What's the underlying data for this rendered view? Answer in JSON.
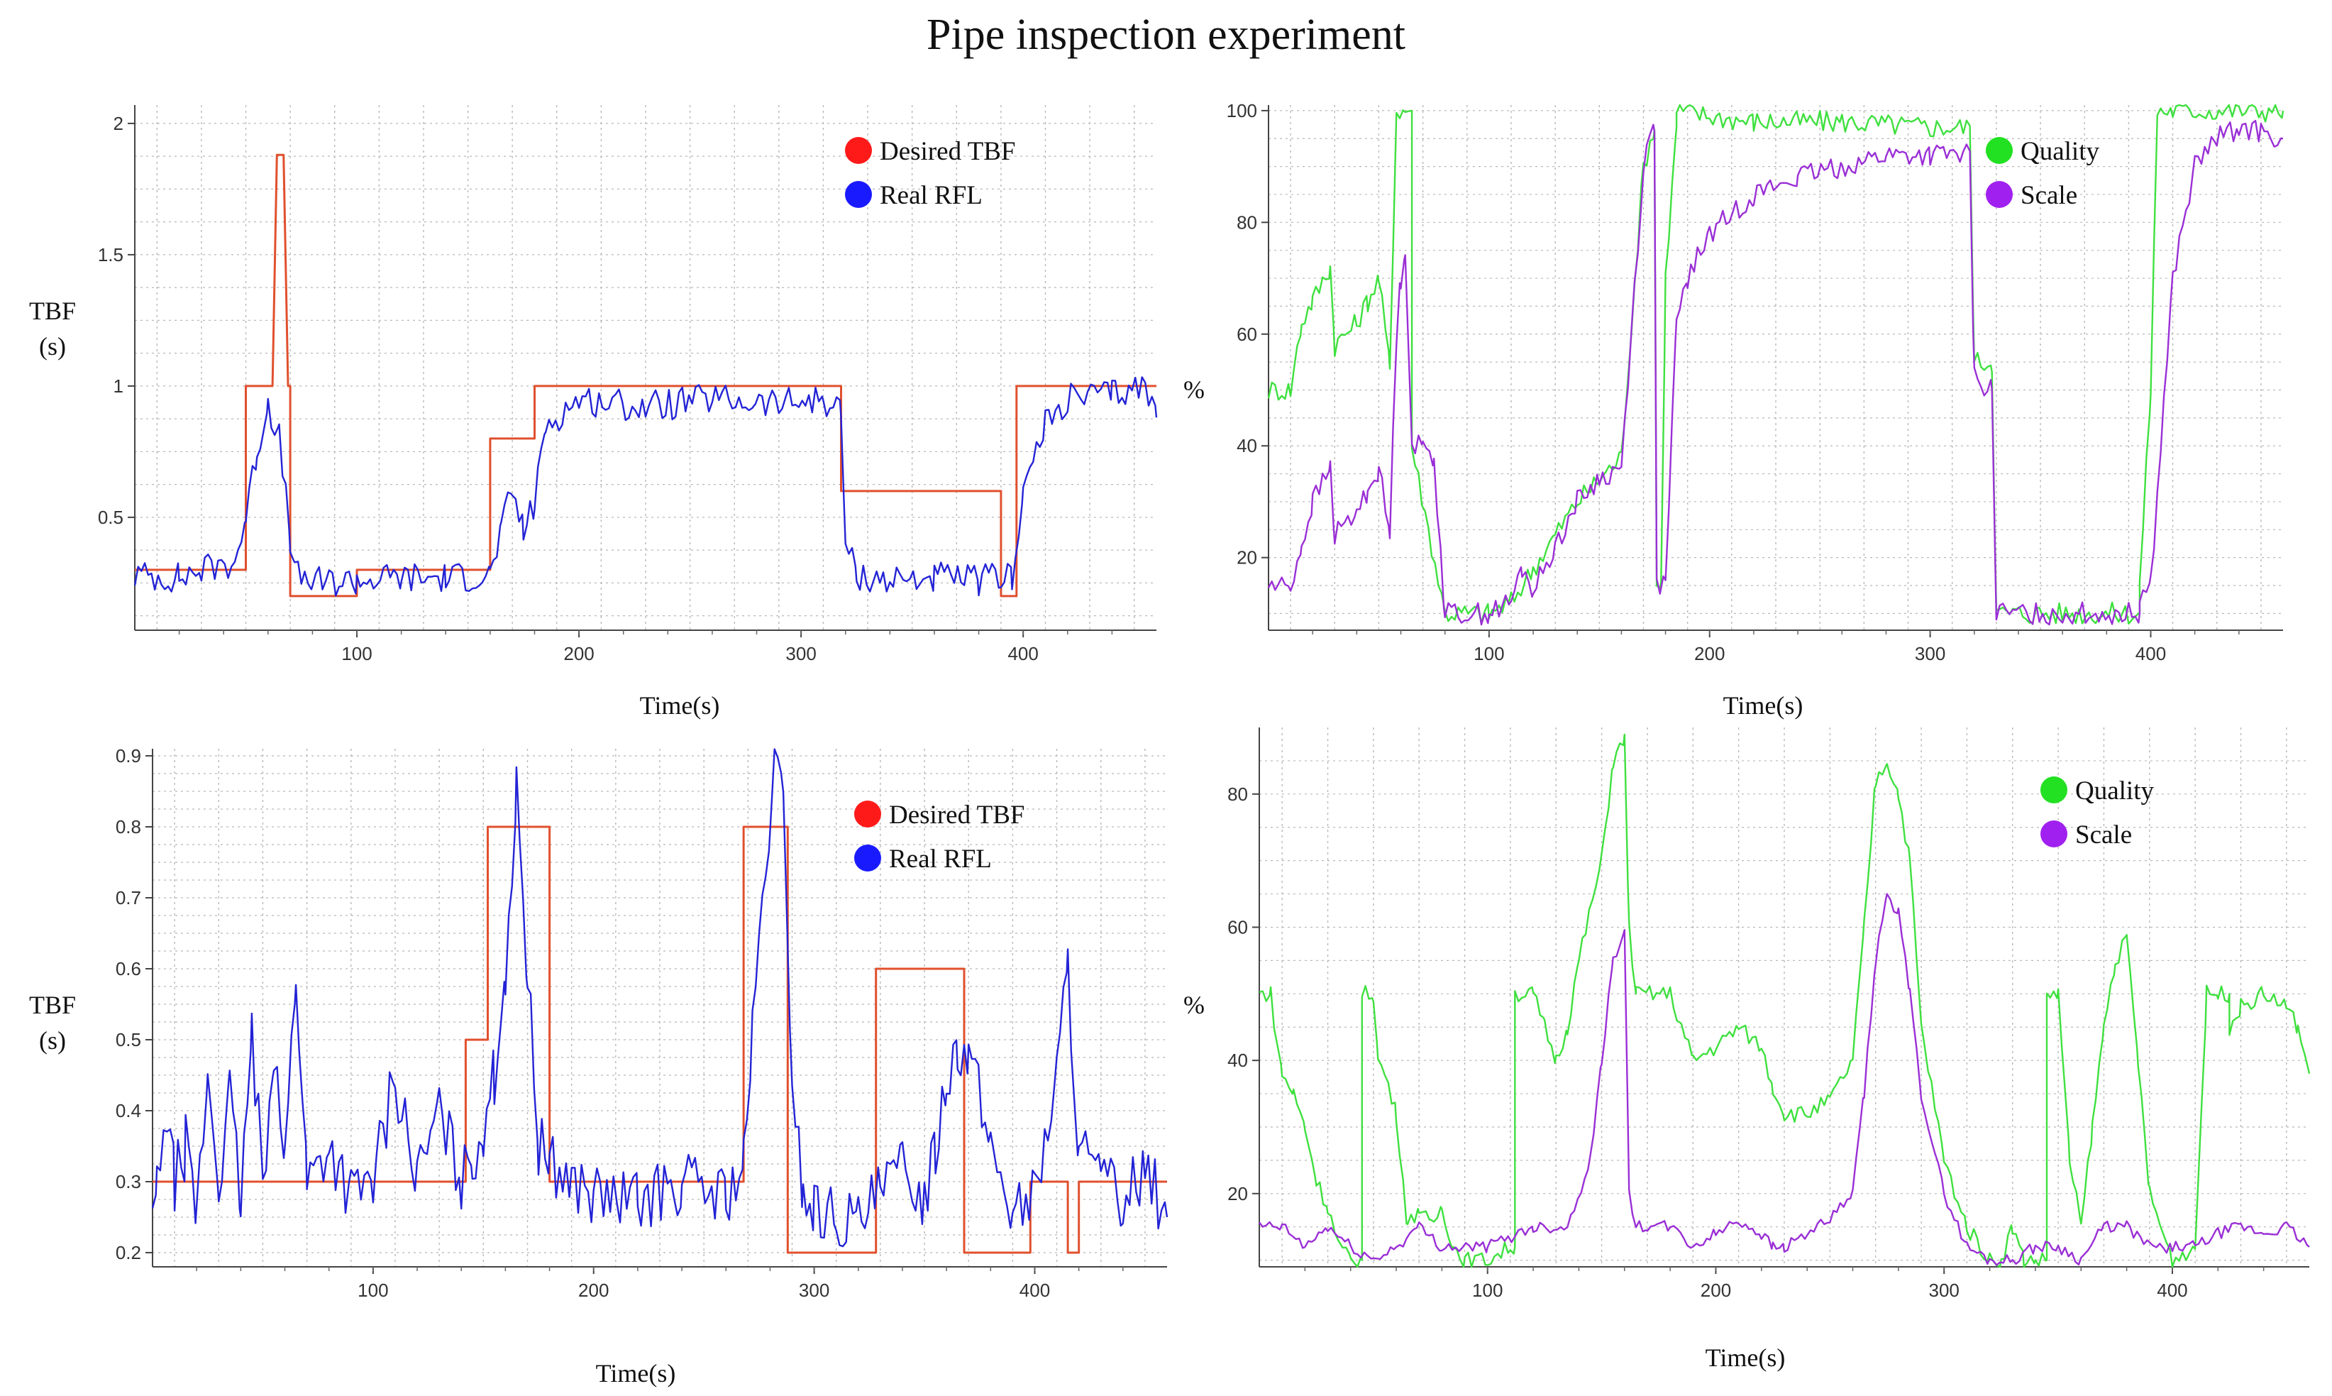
{
  "title": "Pipe inspection experiment",
  "colors": {
    "desired": "#e0502e",
    "real": "#2323d6",
    "quality": "#3fe03f",
    "scale": "#9a2fd6",
    "grid": "#b8b8b8"
  },
  "chart_data": [
    {
      "type": "line",
      "title": "",
      "xlabel": "Time(s)",
      "ylabel": [
        "TBF",
        "(s)"
      ],
      "xlim": [
        0,
        460
      ],
      "ylim": [
        0.07,
        2.07
      ],
      "xticks": [
        100,
        200,
        300,
        400
      ],
      "yticks": [
        0.5,
        1,
        1.5,
        2
      ],
      "ytick_labels": [
        "0.5",
        "1",
        "1.5",
        "2"
      ],
      "legend": [
        {
          "label": "Desired TBF",
          "color": "#ff1a1a"
        },
        {
          "label": "Real RFL",
          "color": "#1a1aff"
        }
      ],
      "legend_position": "top-right",
      "series": [
        {
          "name": "Desired TBF",
          "color": "#e0502e",
          "x": [
            0,
            50,
            50,
            62,
            64,
            67,
            69,
            70,
            70,
            100,
            100,
            160,
            160,
            180,
            180,
            318,
            318,
            390,
            390,
            397,
            397,
            460
          ],
          "values": [
            0.3,
            0.3,
            1.0,
            1.0,
            1.88,
            1.88,
            1.0,
            1.0,
            0.2,
            0.2,
            0.3,
            0.3,
            0.8,
            0.8,
            1.0,
            1.0,
            0.6,
            0.6,
            0.2,
            0.2,
            1.0,
            1.0
          ]
        },
        {
          "name": "Real RFL",
          "color": "#2323d6",
          "x": [
            0,
            20,
            30,
            45,
            50,
            55,
            60,
            65,
            70,
            72,
            80,
            100,
            120,
            140,
            160,
            165,
            170,
            175,
            180,
            185,
            200,
            230,
            260,
            290,
            310,
            318,
            320,
            325,
            340,
            360,
            380,
            390,
            395,
            400,
            410,
            420,
            440,
            455,
            460
          ],
          "values": [
            0.28,
            0.27,
            0.3,
            0.33,
            0.5,
            0.75,
            0.94,
            0.8,
            0.42,
            0.28,
            0.25,
            0.26,
            0.27,
            0.27,
            0.28,
            0.45,
            0.6,
            0.45,
            0.55,
            0.85,
            0.95,
            0.92,
            0.95,
            0.93,
            0.95,
            0.9,
            0.4,
            0.28,
            0.26,
            0.27,
            0.26,
            0.27,
            0.28,
            0.6,
            0.85,
            0.95,
            0.97,
            1.0,
            0.88
          ]
        }
      ]
    },
    {
      "type": "line",
      "title": "",
      "xlabel": "Time(s)",
      "ylabel": [
        "%"
      ],
      "xlim": [
        0,
        460
      ],
      "ylim": [
        7,
        101
      ],
      "xticks": [
        100,
        200,
        300,
        400
      ],
      "yticks": [
        20,
        40,
        60,
        80,
        100
      ],
      "ytick_labels": [
        "20",
        "40",
        "60",
        "80",
        "100"
      ],
      "legend": [
        {
          "label": "Quality",
          "color": "#22e022"
        },
        {
          "label": "Scale",
          "color": "#a020f0"
        }
      ],
      "legend_position": "top-right",
      "series": [
        {
          "name": "Quality",
          "color": "#3fe03f",
          "x": [
            0,
            10,
            15,
            20,
            28,
            30,
            40,
            45,
            50,
            55,
            58,
            62,
            65,
            65,
            80,
            100,
            110,
            120,
            130,
            140,
            150,
            160,
            170,
            175,
            176,
            178,
            180,
            185,
            185,
            200,
            220,
            260,
            300,
            318,
            320,
            328,
            330,
            395,
            395,
            400,
            403,
            410,
            460
          ],
          "values": [
            50,
            50,
            62,
            66,
            72,
            58,
            62,
            66,
            70,
            54,
            100,
            100,
            100,
            40,
            10,
            10,
            12,
            18,
            24,
            30,
            34,
            38,
            90,
            97,
            15,
            15,
            70,
            97,
            100,
            99,
            98,
            98,
            97,
            97,
            55,
            55,
            10,
            10,
            15,
            50,
            100,
            100,
            100
          ]
        },
        {
          "name": "Scale",
          "color": "#9a2fd6",
          "x": [
            0,
            10,
            15,
            20,
            28,
            30,
            40,
            45,
            50,
            55,
            58,
            60,
            62,
            65,
            70,
            75,
            80,
            100,
            110,
            115,
            120,
            130,
            140,
            150,
            160,
            170,
            175,
            176,
            180,
            185,
            190,
            200,
            220,
            240,
            260,
            280,
            300,
            318,
            320,
            328,
            330,
            395,
            395,
            400,
            410,
            420,
            430,
            440,
            450,
            460
          ],
          "values": [
            15,
            15,
            22,
            30,
            36,
            24,
            28,
            32,
            36,
            24,
            60,
            70,
            76,
            40,
            40,
            38,
            10,
            10,
            12,
            18,
            14,
            22,
            30,
            34,
            36,
            90,
            98,
            15,
            15,
            62,
            70,
            78,
            85,
            88,
            90,
            92,
            92,
            92,
            52,
            50,
            10,
            10,
            14,
            15,
            70,
            90,
            95,
            97,
            96,
            95
          ]
        }
      ]
    },
    {
      "type": "line",
      "title": "",
      "xlabel": "Time(s)",
      "ylabel": [
        "TBF",
        "(s)"
      ],
      "xlim": [
        0,
        460
      ],
      "ylim": [
        0.18,
        0.91
      ],
      "xticks": [
        100,
        200,
        300,
        400
      ],
      "yticks": [
        0.2,
        0.3,
        0.4,
        0.5,
        0.6,
        0.7,
        0.8,
        0.9
      ],
      "ytick_labels": [
        "0.2",
        "0.3",
        "0.4",
        "0.5",
        "0.6",
        "0.7",
        "0.8",
        "0.9"
      ],
      "legend": [
        {
          "label": "Desired TBF",
          "color": "#ff1a1a"
        },
        {
          "label": "Real RFL",
          "color": "#1a1aff"
        }
      ],
      "legend_position": "top-right",
      "series": [
        {
          "name": "Desired TBF",
          "color": "#e0502e",
          "x": [
            0,
            142,
            142,
            152,
            152,
            180,
            180,
            268,
            268,
            288,
            288,
            328,
            328,
            368,
            368,
            398,
            398,
            415,
            415,
            420,
            420,
            460
          ],
          "values": [
            0.3,
            0.3,
            0.5,
            0.5,
            0.8,
            0.8,
            0.3,
            0.3,
            0.8,
            0.8,
            0.2,
            0.2,
            0.6,
            0.6,
            0.2,
            0.2,
            0.3,
            0.3,
            0.2,
            0.2,
            0.3,
            0.3
          ]
        },
        {
          "name": "Real RFL",
          "color": "#2323d6",
          "x": [
            0,
            2,
            5,
            10,
            15,
            20,
            25,
            30,
            35,
            40,
            45,
            50,
            55,
            60,
            65,
            70,
            80,
            90,
            100,
            110,
            120,
            130,
            140,
            145,
            150,
            155,
            160,
            165,
            170,
            175,
            180,
            190,
            200,
            220,
            240,
            260,
            268,
            272,
            278,
            282,
            286,
            290,
            295,
            300,
            310,
            320,
            330,
            340,
            350,
            355,
            360,
            365,
            370,
            380,
            390,
            400,
            410,
            415,
            420,
            430,
            440,
            450,
            460
          ],
          "values": [
            0.25,
            0.28,
            0.4,
            0.3,
            0.35,
            0.25,
            0.45,
            0.3,
            0.42,
            0.27,
            0.5,
            0.3,
            0.5,
            0.32,
            0.6,
            0.3,
            0.35,
            0.28,
            0.3,
            0.45,
            0.3,
            0.4,
            0.3,
            0.33,
            0.38,
            0.45,
            0.6,
            0.84,
            0.6,
            0.35,
            0.33,
            0.3,
            0.28,
            0.27,
            0.3,
            0.28,
            0.32,
            0.5,
            0.75,
            0.88,
            0.83,
            0.45,
            0.28,
            0.26,
            0.25,
            0.24,
            0.28,
            0.32,
            0.28,
            0.35,
            0.45,
            0.5,
            0.48,
            0.35,
            0.26,
            0.28,
            0.45,
            0.6,
            0.35,
            0.3,
            0.28,
            0.32,
            0.25
          ]
        }
      ]
    },
    {
      "type": "line",
      "title": "",
      "xlabel": "Time(s)",
      "ylabel": [
        "%"
      ],
      "xlim": [
        0,
        460
      ],
      "ylim": [
        9,
        90
      ],
      "xticks": [
        100,
        200,
        300,
        400
      ],
      "yticks": [
        20,
        40,
        60,
        80
      ],
      "ytick_labels": [
        "20",
        "40",
        "60",
        "80"
      ],
      "legend": [
        {
          "label": "Quality",
          "color": "#22e022"
        },
        {
          "label": "Scale",
          "color": "#a020f0"
        }
      ],
      "legend_position": "top-right",
      "series": [
        {
          "name": "Quality",
          "color": "#3fe03f",
          "x": [
            0,
            5,
            8,
            10,
            15,
            20,
            25,
            30,
            35,
            40,
            45,
            45,
            50,
            52,
            55,
            60,
            65,
            70,
            75,
            80,
            85,
            90,
            100,
            110,
            112,
            112,
            120,
            125,
            130,
            135,
            140,
            150,
            155,
            160,
            162,
            165,
            165,
            180,
            185,
            190,
            200,
            210,
            220,
            225,
            230,
            240,
            250,
            260,
            265,
            270,
            275,
            280,
            285,
            290,
            300,
            310,
            320,
            325,
            330,
            335,
            340,
            345,
            345,
            350,
            355,
            360,
            365,
            370,
            375,
            380,
            385,
            390,
            400,
            410,
            415,
            420,
            425,
            425,
            430,
            440,
            450,
            455,
            460
          ],
          "values": [
            50,
            50,
            42,
            38,
            35,
            30,
            22,
            18,
            12,
            10,
            10,
            50,
            50,
            40,
            38,
            32,
            15,
            18,
            15,
            18,
            12,
            10,
            10,
            12,
            12,
            50,
            50,
            45,
            40,
            45,
            55,
            70,
            85,
            88,
            60,
            50,
            50,
            50,
            45,
            40,
            42,
            45,
            42,
            36,
            32,
            32,
            34,
            40,
            60,
            82,
            85,
            80,
            70,
            45,
            25,
            15,
            10,
            10,
            15,
            10,
            10,
            10,
            50,
            50,
            25,
            15,
            30,
            45,
            55,
            58,
            40,
            20,
            10,
            12,
            50,
            50,
            50,
            45,
            48,
            50,
            48,
            45,
            38
          ]
        },
        {
          "name": "Scale",
          "color": "#9a2fd6",
          "x": [
            0,
            10,
            20,
            30,
            40,
            50,
            60,
            70,
            80,
            100,
            120,
            135,
            145,
            150,
            155,
            160,
            162,
            165,
            170,
            180,
            190,
            200,
            210,
            220,
            225,
            230,
            240,
            250,
            260,
            265,
            270,
            275,
            280,
            285,
            290,
            300,
            310,
            320,
            330,
            340,
            350,
            360,
            370,
            380,
            390,
            400,
            410,
            420,
            430,
            440,
            450,
            460
          ],
          "values": [
            15,
            15,
            12,
            15,
            12,
            10,
            12,
            15,
            12,
            12,
            15,
            15,
            25,
            40,
            55,
            60,
            20,
            15,
            15,
            15,
            12,
            14,
            16,
            14,
            12,
            12,
            14,
            16,
            20,
            35,
            55,
            65,
            62,
            50,
            35,
            20,
            12,
            10,
            10,
            12,
            12,
            10,
            15,
            15,
            12,
            12,
            12,
            14,
            15,
            14,
            15,
            12
          ]
        }
      ]
    }
  ]
}
